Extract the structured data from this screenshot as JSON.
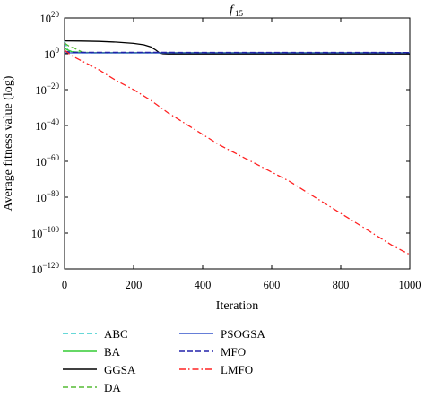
{
  "chart_data": {
    "type": "line",
    "title_main": "f",
    "title_sub": "15",
    "xlabel": "Iteration",
    "ylabel": "Average fitness value (log)",
    "y_scale": "log",
    "xlim": [
      0,
      1000
    ],
    "ylim_log10": [
      -120,
      20
    ],
    "grid": false,
    "legend_placement": "below",
    "x_ticks": [
      {
        "value": 0,
        "label": "0"
      },
      {
        "value": 200,
        "label": "200"
      },
      {
        "value": 400,
        "label": "400"
      },
      {
        "value": 600,
        "label": "600"
      },
      {
        "value": 800,
        "label": "800"
      },
      {
        "value": 1000,
        "label": "1000"
      }
    ],
    "y_ticks": [
      {
        "exp": 20,
        "base": "10",
        "sup": "20"
      },
      {
        "exp": 0,
        "base": "10",
        "sup": "0"
      },
      {
        "exp": -20,
        "base": "10",
        "sup": "−20"
      },
      {
        "exp": -40,
        "base": "10",
        "sup": "−40"
      },
      {
        "exp": -60,
        "base": "10",
        "sup": "−60"
      },
      {
        "exp": -80,
        "base": "10",
        "sup": "−80"
      },
      {
        "exp": -100,
        "base": "10",
        "sup": "−100"
      },
      {
        "exp": -120,
        "base": "10",
        "sup": "−120"
      }
    ],
    "series": [
      {
        "name": "ABC",
        "color": "#33cccc",
        "dash": "dashed",
        "x": [
          0,
          10,
          30,
          50,
          1000
        ],
        "log10_y": [
          7,
          2,
          0.7,
          0.5,
          0.5
        ]
      },
      {
        "name": "BA",
        "color": "#33cc33",
        "dash": "solid",
        "x": [
          0,
          20,
          60,
          1000
        ],
        "log10_y": [
          3,
          1.2,
          0.6,
          0.5
        ]
      },
      {
        "name": "GGSA",
        "color": "#000000",
        "dash": "solid",
        "x": [
          0,
          50,
          100,
          150,
          200,
          230,
          250,
          265,
          275,
          285,
          300,
          1000
        ],
        "log10_y": [
          7.2,
          7.1,
          6.9,
          6.5,
          5.8,
          5.0,
          3.8,
          2.0,
          0.5,
          0.0,
          -0.1,
          -0.1
        ]
      },
      {
        "name": "DA",
        "color": "#55bb33",
        "dash": "dashed",
        "x": [
          0,
          15,
          30,
          50,
          80,
          1000
        ],
        "log10_y": [
          6,
          4,
          3,
          1,
          0.5,
          0.5
        ]
      },
      {
        "name": "PSOGSA",
        "color": "#3355cc",
        "dash": "solid",
        "x": [
          0,
          1000
        ],
        "log10_y": [
          0.5,
          0.5
        ]
      },
      {
        "name": "MFO",
        "color": "#2222aa",
        "dash": "dashed",
        "x": [
          0,
          20,
          1000
        ],
        "log10_y": [
          1.5,
          0.8,
          0.7
        ]
      },
      {
        "name": "LMFO",
        "color": "#ff2222",
        "dash": "dashdot",
        "x": [
          0,
          20,
          50,
          100,
          150,
          200,
          250,
          300,
          350,
          400,
          450,
          500,
          550,
          600,
          650,
          700,
          750,
          800,
          850,
          900,
          950,
          1000
        ],
        "log10_y": [
          2,
          -1,
          -4,
          -9,
          -15,
          -20,
          -26,
          -33,
          -39,
          -45,
          -51,
          -56,
          -61,
          -66,
          -71,
          -77,
          -83,
          -89,
          -95,
          -101,
          -107,
          -112
        ]
      }
    ]
  }
}
